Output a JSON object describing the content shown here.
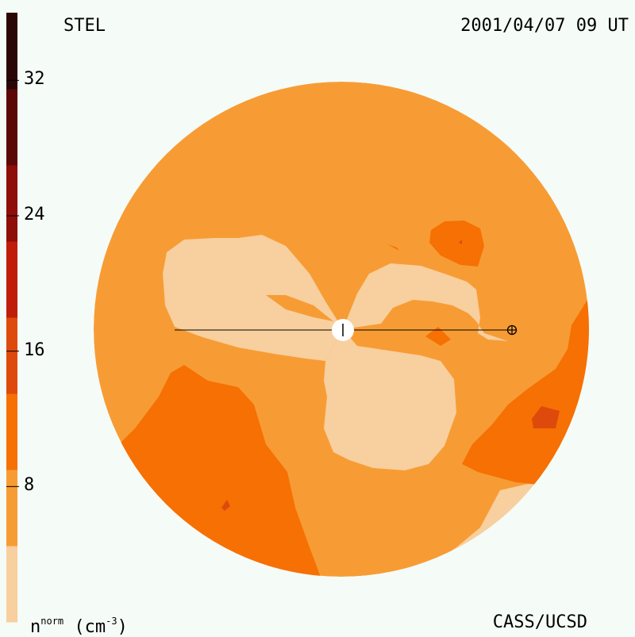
{
  "header": {
    "left_label": "STEL",
    "right_label": "2001/04/07 09 UT"
  },
  "footer": {
    "right_label": "CASS/UCSD",
    "units": {
      "base": "n",
      "superscript": "norm",
      "unit_open": " (cm",
      "unit_exponent": "-3",
      "unit_close": ")"
    }
  },
  "colorbar": {
    "ticks": [
      "32",
      "24",
      "16",
      "8"
    ],
    "tick_values": [
      32,
      24,
      16,
      8
    ],
    "range": [
      0,
      36
    ],
    "colors": [
      "#f8cf9e",
      "#f79c34",
      "#f67004",
      "#de4a0b",
      "#bf1d0a",
      "#8f0e08",
      "#5c0807",
      "#2a0604"
    ]
  },
  "map": {
    "background_color": "#f79c34",
    "contour_colors": {
      "light": "#f8cf9e",
      "medium": "#f67004",
      "dark": "#de4a0b"
    },
    "markers": [
      "sun",
      "earth"
    ]
  }
}
